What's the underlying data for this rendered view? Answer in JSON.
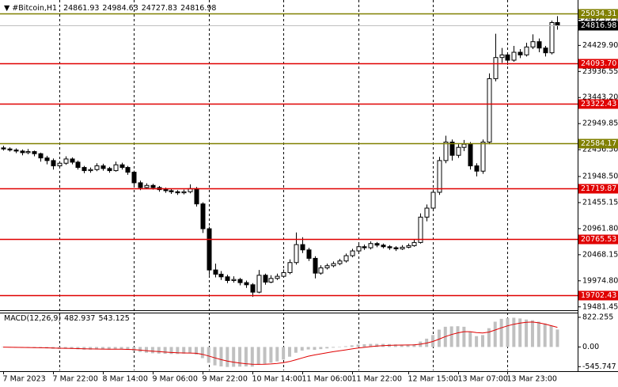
{
  "chart_data": {
    "type": "candlestick",
    "title": "#Bitcoin,H1",
    "categories": [
      "7 Mar 2023",
      null,
      null,
      null,
      null,
      null,
      null,
      null,
      "7 Mar 22:00",
      null,
      null,
      null,
      null,
      null,
      null,
      null,
      "8 Mar 14:00",
      null,
      null,
      null,
      null,
      null,
      null,
      null,
      "9 Mar 06:00",
      null,
      null,
      null,
      null,
      null,
      null,
      null,
      "9 Mar 22:00",
      null,
      null,
      null,
      null,
      null,
      null,
      null,
      "10 Mar 14:00",
      null,
      null,
      null,
      null,
      null,
      null,
      null,
      "11 Mar 06:00",
      null,
      null,
      null,
      null,
      null,
      null,
      null,
      "11 Mar 22:00",
      null,
      null,
      null,
      null,
      null,
      null,
      null,
      null,
      "12 Mar 15:00",
      null,
      null,
      null,
      null,
      null,
      null,
      null,
      "13 Mar 07:00",
      null,
      null,
      null,
      null,
      null,
      null,
      null,
      "13 Mar 23:00",
      null,
      null,
      null,
      null,
      null,
      null,
      null,
      null
    ],
    "candles": [
      [
        22490,
        22530,
        22440,
        22470
      ],
      [
        22470,
        22500,
        22420,
        22450
      ],
      [
        22450,
        22480,
        22390,
        22430
      ],
      [
        22430,
        22460,
        22350,
        22400
      ],
      [
        22400,
        22470,
        22370,
        22420
      ],
      [
        22420,
        22440,
        22330,
        22380
      ],
      [
        22380,
        22400,
        22230,
        22300
      ],
      [
        22300,
        22340,
        22180,
        22250
      ],
      [
        22250,
        22290,
        22080,
        22150
      ],
      [
        22150,
        22240,
        22100,
        22200
      ],
      [
        22200,
        22330,
        22170,
        22280
      ],
      [
        22280,
        22310,
        22180,
        22220
      ],
      [
        22220,
        22250,
        22080,
        22120
      ],
      [
        22120,
        22150,
        22010,
        22060
      ],
      [
        22060,
        22120,
        22020,
        22080
      ],
      [
        22080,
        22200,
        22050,
        22150
      ],
      [
        22150,
        22190,
        22060,
        22100
      ],
      [
        22100,
        22130,
        22020,
        22060
      ],
      [
        22060,
        22230,
        22040,
        22170
      ],
      [
        22170,
        22210,
        22080,
        22120
      ],
      [
        22120,
        22150,
        21980,
        22030
      ],
      [
        22030,
        22060,
        21780,
        21830
      ],
      [
        21830,
        21870,
        21690,
        21740
      ],
      [
        21740,
        21820,
        21710,
        21780
      ],
      [
        21780,
        21810,
        21700,
        21740
      ],
      [
        21740,
        21770,
        21660,
        21700
      ],
      [
        21700,
        21740,
        21640,
        21680
      ],
      [
        21680,
        21710,
        21620,
        21660
      ],
      [
        21660,
        21690,
        21600,
        21640
      ],
      [
        21640,
        21700,
        21610,
        21660
      ],
      [
        21660,
        21800,
        21630,
        21720
      ],
      [
        21720,
        21750,
        21380,
        21430
      ],
      [
        21430,
        21460,
        20880,
        20960
      ],
      [
        20960,
        21000,
        20080,
        20180
      ],
      [
        20180,
        20300,
        20040,
        20100
      ],
      [
        20100,
        20160,
        19990,
        20050
      ],
      [
        20050,
        20090,
        19930,
        19980
      ],
      [
        19980,
        20060,
        19940,
        20000
      ],
      [
        20000,
        20030,
        19890,
        19940
      ],
      [
        19940,
        19980,
        19840,
        19900
      ],
      [
        19900,
        19930,
        19670,
        19760
      ],
      [
        19760,
        20180,
        19740,
        20080
      ],
      [
        20080,
        20110,
        19900,
        19950
      ],
      [
        19950,
        20080,
        19930,
        20020
      ],
      [
        20020,
        20110,
        19990,
        20060
      ],
      [
        20060,
        20190,
        20030,
        20130
      ],
      [
        20130,
        20380,
        20100,
        20320
      ],
      [
        20320,
        20890,
        20280,
        20660
      ],
      [
        20660,
        20800,
        20500,
        20560
      ],
      [
        20560,
        20600,
        20350,
        20400
      ],
      [
        20400,
        20440,
        20020,
        20120
      ],
      [
        20120,
        20270,
        20090,
        20220
      ],
      [
        20220,
        20300,
        20190,
        20260
      ],
      [
        20260,
        20340,
        20230,
        20300
      ],
      [
        20300,
        20390,
        20270,
        20350
      ],
      [
        20350,
        20490,
        20320,
        20450
      ],
      [
        20450,
        20580,
        20420,
        20540
      ],
      [
        20540,
        20680,
        20510,
        20620
      ],
      [
        20620,
        20660,
        20560,
        20600
      ],
      [
        20600,
        20720,
        20570,
        20680
      ],
      [
        20680,
        20710,
        20610,
        20650
      ],
      [
        20650,
        20680,
        20590,
        20620
      ],
      [
        20620,
        20650,
        20560,
        20600
      ],
      [
        20600,
        20630,
        20540,
        20580
      ],
      [
        20580,
        20650,
        20560,
        20610
      ],
      [
        20610,
        20680,
        20590,
        20640
      ],
      [
        20640,
        20760,
        20620,
        20700
      ],
      [
        20700,
        21250,
        20680,
        21180
      ],
      [
        21180,
        21420,
        21100,
        21350
      ],
      [
        21350,
        21700,
        21300,
        21650
      ],
      [
        21650,
        22320,
        21600,
        22250
      ],
      [
        22250,
        22720,
        22200,
        22600
      ],
      [
        22600,
        22650,
        22250,
        22350
      ],
      [
        22350,
        22560,
        22300,
        22500
      ],
      [
        22500,
        22640,
        22430,
        22560
      ],
      [
        22560,
        22600,
        22080,
        22150
      ],
      [
        22150,
        22200,
        21950,
        22050
      ],
      [
        22050,
        22650,
        22000,
        22600
      ],
      [
        22600,
        23900,
        22560,
        23800
      ],
      [
        23800,
        24650,
        23750,
        24200
      ],
      [
        24200,
        24380,
        24100,
        24250
      ],
      [
        24250,
        24300,
        24060,
        24150
      ],
      [
        24150,
        24420,
        24120,
        24300
      ],
      [
        24300,
        24360,
        24190,
        24250
      ],
      [
        24250,
        24480,
        24220,
        24400
      ],
      [
        24400,
        24640,
        24360,
        24500
      ],
      [
        24500,
        24560,
        24300,
        24380
      ],
      [
        24380,
        24420,
        24220,
        24290
      ],
      [
        24290,
        24900,
        24260,
        24861.93
      ],
      [
        24861.93,
        24984.63,
        24727.83,
        24816.98
      ]
    ],
    "ylim": [
      19417.8,
      25288.9
    ],
    "yticks": [
      {
        "value": 24923.25,
        "label": "24923.25"
      },
      {
        "value": 24429.9,
        "label": "24429.90"
      },
      {
        "value": 23936.55,
        "label": "23936.55"
      },
      {
        "value": 23443.2,
        "label": "23443.20"
      },
      {
        "value": 22949.85,
        "label": "22949.85"
      },
      {
        "value": 22456.5,
        "label": "22456.50"
      },
      {
        "value": 21948.5,
        "label": "21948.50"
      },
      {
        "value": 21455.15,
        "label": "21455.15"
      },
      {
        "value": 20961.8,
        "label": "20961.80"
      },
      {
        "value": 20468.15,
        "label": "20468.15"
      },
      {
        "value": 19974.8,
        "label": "19974.80"
      },
      {
        "value": 19481.45,
        "label": "19481.45"
      }
    ],
    "levels": [
      {
        "value": 25034.31,
        "color": "#808000"
      },
      {
        "value": 24093.7,
        "label": "24093.70",
        "color": "#e00000"
      },
      {
        "value": 23322.43,
        "color": "#e00000"
      },
      {
        "value": 22584.17,
        "color": "#808000"
      },
      {
        "value": 21719.87,
        "color": "#e00000"
      },
      {
        "value": 20765.53,
        "color": "#e00000"
      },
      {
        "value": 19702.43,
        "color": "#e00000"
      }
    ],
    "macd": {
      "title": "MACD(12,26,9)",
      "ylim": [
        -649,
        952
      ],
      "yticks": [
        822.255,
        {
          "value": 0,
          "label": "0.00"
        },
        -545.747
      ],
      "hist_color": "#c0c0c0",
      "signal_color": "#e00000",
      "hist": [
        -10,
        -15,
        -20,
        -25,
        -25,
        -30,
        -35,
        -40,
        -50,
        -55,
        -50,
        -55,
        -65,
        -75,
        -75,
        -70,
        -70,
        -72,
        -65,
        -68,
        -80,
        -110,
        -140,
        -160,
        -175,
        -185,
        -190,
        -195,
        -195,
        -185,
        -170,
        -210,
        -310,
        -440,
        -510,
        -540,
        -555,
        -550,
        -545,
        -540,
        -545,
        -490,
        -470,
        -440,
        -400,
        -350,
        -270,
        -160,
        -100,
        -70,
        -80,
        -60,
        -40,
        -20,
        0,
        20,
        45,
        65,
        75,
        85,
        85,
        85,
        80,
        70,
        65,
        65,
        75,
        150,
        230,
        330,
        480,
        560,
        570,
        575,
        560,
        420,
        300,
        330,
        520,
        700,
        780,
        800,
        810,
        790,
        760,
        740,
        700,
        650,
        590,
        482.937
      ],
      "signal": [
        -5,
        -8,
        -10,
        -13,
        -15,
        -18,
        -21,
        -25,
        -30,
        -35,
        -38,
        -41,
        -45,
        -50,
        -54,
        -57,
        -60,
        -62,
        -63,
        -64,
        -67,
        -75,
        -88,
        -102,
        -117,
        -130,
        -142,
        -153,
        -162,
        -167,
        -168,
        -176,
        -203,
        -250,
        -302,
        -350,
        -390,
        -422,
        -446,
        -464,
        -480,
        -482,
        -480,
        -472,
        -458,
        -436,
        -403,
        -355,
        -304,
        -257,
        -222,
        -190,
        -160,
        -132,
        -106,
        -80,
        -55,
        -31,
        -10,
        9,
        24,
        36,
        45,
        50,
        53,
        56,
        60,
        78,
        108,
        152,
        218,
        287,
        344,
        390,
        424,
        424,
        400,
        386,
        413,
        470,
        532,
        585,
        630,
        662,
        682,
        690,
        670,
        635,
        590,
        543.125
      ]
    }
  }
}
